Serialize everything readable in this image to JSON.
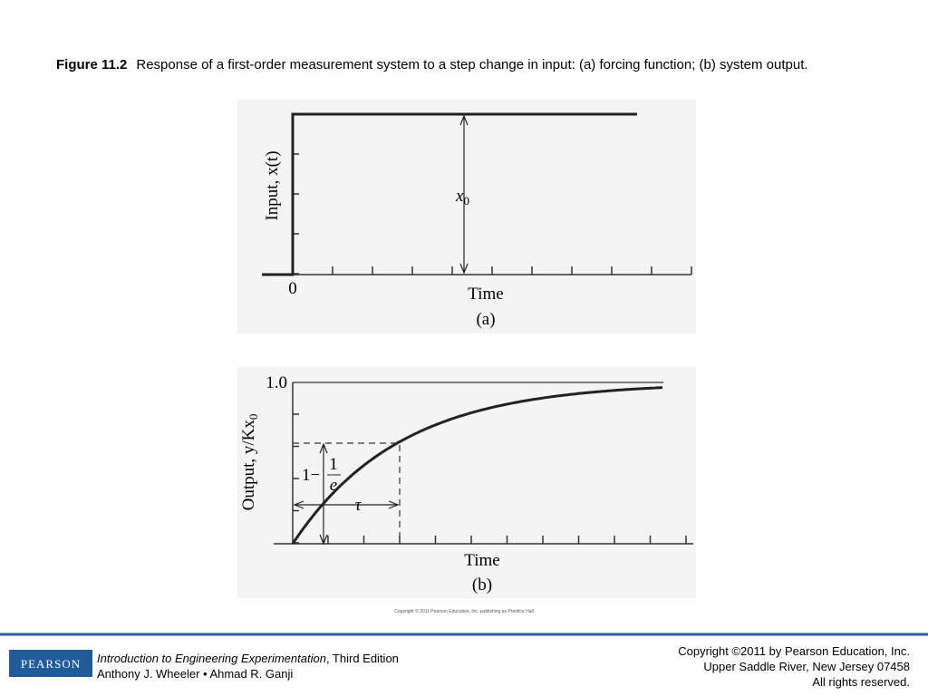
{
  "caption": {
    "label": "Figure 11.2",
    "text": "Response of a first-order measurement system to a step change in input: (a) forcing function; (b) system output."
  },
  "figure": {
    "panel_a": {
      "y_label": "Input, x(t)",
      "amplitude_symbol": "x",
      "amplitude_subscript": "0",
      "origin_label": "0",
      "x_label": "Time",
      "tag": "(a)"
    },
    "panel_b": {
      "y_label_prefix": "Output, y/Kx",
      "y_label_subscript": "0",
      "top_tick": "1.0",
      "level_prefix": "1−",
      "level_numerator": "1",
      "level_denominator": "e",
      "time_constant": "τ",
      "x_label": "Time",
      "tag": "(b)"
    },
    "copyright": "Copyright © 2011 Pearson Education, Inc. publishing as Prentice Hall"
  },
  "footer": {
    "logo": "PEARSON",
    "book_title": "Introduction to Engineering Experimentation",
    "edition": ", Third Edition",
    "authors": "Anthony J. Wheeler • Ahmad R. Ganji",
    "copyright_lines": [
      "Copyright ©2011 by Pearson Education, Inc.",
      "Upper Saddle River, New Jersey 07458",
      "All rights reserved."
    ]
  }
}
